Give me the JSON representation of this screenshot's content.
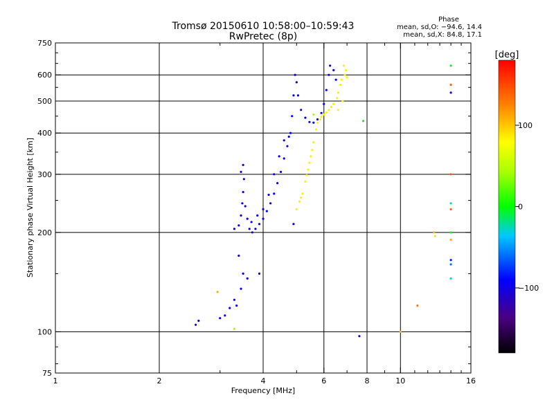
{
  "chart_data": {
    "type": "scatter",
    "title": "Tromsø 20150610 10:58:00–10:59:43",
    "subtitle": "RwPretec (8p)",
    "xlabel": "Frequency [MHz]",
    "ylabel": "Stationary phase Virtual Height [km]",
    "x_scale": "log",
    "y_scale": "log",
    "xlim": [
      1,
      16
    ],
    "ylim": [
      75,
      750
    ],
    "grid": true,
    "x_major_ticks": [
      1,
      2,
      4,
      6,
      8,
      10,
      16
    ],
    "x_tick_labels": [
      "1",
      "2",
      "4",
      "6",
      "8",
      "10",
      "16"
    ],
    "y_major_ticks": [
      75,
      100,
      200,
      300,
      400,
      500,
      600,
      750
    ],
    "y_tick_labels": [
      "75",
      "100",
      "200",
      "300",
      "400",
      "500",
      "600",
      "750"
    ],
    "phase_stats": {
      "heading": "Phase",
      "o_line": "mean, sd,O: −94.6, 14.4",
      "x_line": "mean, sd,X:  84.8, 17.1"
    },
    "colorbar": {
      "label": "[deg]",
      "min": -180,
      "max": 180,
      "ticks": [
        100,
        0,
        -100
      ],
      "tick_labels": [
        "100",
        "0",
        "−100"
      ]
    },
    "trace_points": [
      {
        "x": 3.4,
        "y": 210,
        "phase": -95
      },
      {
        "x": 3.45,
        "y": 225,
        "phase": -95
      },
      {
        "x": 3.48,
        "y": 245,
        "phase": -95
      },
      {
        "x": 3.5,
        "y": 265,
        "phase": -95
      },
      {
        "x": 3.52,
        "y": 290,
        "phase": -95
      },
      {
        "x": 3.5,
        "y": 320,
        "phase": -120
      },
      {
        "x": 3.45,
        "y": 305,
        "phase": -100
      },
      {
        "x": 3.55,
        "y": 240,
        "phase": -95
      },
      {
        "x": 3.6,
        "y": 220,
        "phase": -95
      },
      {
        "x": 3.65,
        "y": 205,
        "phase": -95
      },
      {
        "x": 3.72,
        "y": 200,
        "phase": -95
      },
      {
        "x": 3.8,
        "y": 205,
        "phase": -95
      },
      {
        "x": 3.9,
        "y": 212,
        "phase": -95
      },
      {
        "x": 4.0,
        "y": 220,
        "phase": -95
      },
      {
        "x": 4.1,
        "y": 232,
        "phase": -95
      },
      {
        "x": 4.2,
        "y": 245,
        "phase": -95
      },
      {
        "x": 4.3,
        "y": 262,
        "phase": -95
      },
      {
        "x": 4.4,
        "y": 282,
        "phase": -95
      },
      {
        "x": 4.5,
        "y": 305,
        "phase": -95
      },
      {
        "x": 4.6,
        "y": 335,
        "phase": -95
      },
      {
        "x": 4.7,
        "y": 365,
        "phase": -95
      },
      {
        "x": 4.8,
        "y": 400,
        "phase": -95
      },
      {
        "x": 4.85,
        "y": 450,
        "phase": -95
      },
      {
        "x": 4.9,
        "y": 520,
        "phase": -95
      },
      {
        "x": 4.95,
        "y": 600,
        "phase": -95
      },
      {
        "x": 5.0,
        "y": 570,
        "phase": -95
      },
      {
        "x": 5.05,
        "y": 520,
        "phase": -95
      },
      {
        "x": 5.15,
        "y": 470,
        "phase": -95
      },
      {
        "x": 5.3,
        "y": 445,
        "phase": -95
      },
      {
        "x": 5.45,
        "y": 432,
        "phase": -95
      },
      {
        "x": 5.6,
        "y": 430,
        "phase": -95
      },
      {
        "x": 5.75,
        "y": 440,
        "phase": -95
      },
      {
        "x": 5.9,
        "y": 460,
        "phase": -95
      },
      {
        "x": 6.0,
        "y": 490,
        "phase": -95
      },
      {
        "x": 6.1,
        "y": 540,
        "phase": -95
      },
      {
        "x": 6.2,
        "y": 600,
        "phase": -95
      },
      {
        "x": 6.25,
        "y": 640,
        "phase": -95
      },
      {
        "x": 6.4,
        "y": 620,
        "phase": -95
      },
      {
        "x": 6.5,
        "y": 580,
        "phase": -95
      },
      {
        "x": 3.7,
        "y": 215,
        "phase": -95
      },
      {
        "x": 3.85,
        "y": 225,
        "phase": -95
      },
      {
        "x": 4.0,
        "y": 235,
        "phase": -95
      },
      {
        "x": 4.15,
        "y": 260,
        "phase": -95
      },
      {
        "x": 4.3,
        "y": 300,
        "phase": -95
      },
      {
        "x": 4.45,
        "y": 340,
        "phase": -95
      },
      {
        "x": 4.6,
        "y": 380,
        "phase": -95
      },
      {
        "x": 4.75,
        "y": 390,
        "phase": -95
      },
      {
        "x": 3.4,
        "y": 170,
        "phase": -95
      },
      {
        "x": 3.5,
        "y": 150,
        "phase": -95
      },
      {
        "x": 3.6,
        "y": 145,
        "phase": -95
      },
      {
        "x": 3.45,
        "y": 135,
        "phase": -95
      },
      {
        "x": 3.3,
        "y": 125,
        "phase": -95
      },
      {
        "x": 3.2,
        "y": 118,
        "phase": -95
      },
      {
        "x": 3.1,
        "y": 112,
        "phase": -95
      },
      {
        "x": 3.0,
        "y": 110,
        "phase": -95
      },
      {
        "x": 3.35,
        "y": 120,
        "phase": -95
      },
      {
        "x": 2.6,
        "y": 108,
        "phase": -95
      },
      {
        "x": 2.55,
        "y": 105,
        "phase": -95
      },
      {
        "x": 3.9,
        "y": 150,
        "phase": -95
      },
      {
        "x": 3.3,
        "y": 205,
        "phase": -95
      },
      {
        "x": 4.9,
        "y": 212,
        "phase": -95
      },
      {
        "x": 7.6,
        "y": 97,
        "phase": -110
      },
      {
        "x": 5.0,
        "y": 235,
        "phase": 85
      },
      {
        "x": 5.1,
        "y": 248,
        "phase": 85
      },
      {
        "x": 5.2,
        "y": 262,
        "phase": 85
      },
      {
        "x": 5.3,
        "y": 285,
        "phase": 85
      },
      {
        "x": 5.4,
        "y": 310,
        "phase": 85
      },
      {
        "x": 5.5,
        "y": 340,
        "phase": 85
      },
      {
        "x": 5.6,
        "y": 375,
        "phase": 85
      },
      {
        "x": 5.7,
        "y": 410,
        "phase": 85
      },
      {
        "x": 5.85,
        "y": 440,
        "phase": 85
      },
      {
        "x": 6.0,
        "y": 455,
        "phase": 85
      },
      {
        "x": 6.2,
        "y": 470,
        "phase": 85
      },
      {
        "x": 6.4,
        "y": 490,
        "phase": 85
      },
      {
        "x": 6.6,
        "y": 530,
        "phase": 85
      },
      {
        "x": 6.75,
        "y": 580,
        "phase": 85
      },
      {
        "x": 6.85,
        "y": 640,
        "phase": 85
      },
      {
        "x": 6.9,
        "y": 600,
        "phase": 85
      },
      {
        "x": 6.7,
        "y": 560,
        "phase": 85
      },
      {
        "x": 6.55,
        "y": 510,
        "phase": 85
      },
      {
        "x": 6.3,
        "y": 480,
        "phase": 85
      },
      {
        "x": 6.1,
        "y": 462,
        "phase": 85
      },
      {
        "x": 5.9,
        "y": 448,
        "phase": 85
      },
      {
        "x": 5.75,
        "y": 430,
        "phase": 85
      },
      {
        "x": 5.55,
        "y": 355,
        "phase": 85
      },
      {
        "x": 5.35,
        "y": 298,
        "phase": 85
      },
      {
        "x": 5.15,
        "y": 255,
        "phase": 85
      },
      {
        "x": 5.45,
        "y": 325,
        "phase": 85
      },
      {
        "x": 6.95,
        "y": 620,
        "phase": 85
      },
      {
        "x": 7.0,
        "y": 590,
        "phase": 85
      },
      {
        "x": 6.8,
        "y": 500,
        "phase": 85
      },
      {
        "x": 6.6,
        "y": 470,
        "phase": 85
      },
      {
        "x": 5.6,
        "y": 455,
        "phase": 40
      },
      {
        "x": 7.8,
        "y": 435,
        "phase": -5
      },
      {
        "x": 2.95,
        "y": 132,
        "phase": 110
      },
      {
        "x": 3.3,
        "y": 102,
        "phase": 40
      },
      {
        "x": 10.0,
        "y": 100,
        "phase": 110
      },
      {
        "x": 11.2,
        "y": 120,
        "phase": 130
      },
      {
        "x": 12.5,
        "y": 200,
        "phase": 110
      },
      {
        "x": 12.6,
        "y": 195,
        "phase": 60
      },
      {
        "x": 14.0,
        "y": 640,
        "phase": -5
      },
      {
        "x": 14.0,
        "y": 560,
        "phase": 140
      },
      {
        "x": 14.0,
        "y": 530,
        "phase": -110
      },
      {
        "x": 14.0,
        "y": 300,
        "phase": 140
      },
      {
        "x": 14.0,
        "y": 245,
        "phase": -20
      },
      {
        "x": 14.0,
        "y": 235,
        "phase": 140
      },
      {
        "x": 14.0,
        "y": 200,
        "phase": -5
      },
      {
        "x": 14.0,
        "y": 190,
        "phase": 110
      },
      {
        "x": 14.0,
        "y": 165,
        "phase": -85
      },
      {
        "x": 14.0,
        "y": 160,
        "phase": -60
      },
      {
        "x": 14.0,
        "y": 145,
        "phase": -30
      }
    ]
  }
}
